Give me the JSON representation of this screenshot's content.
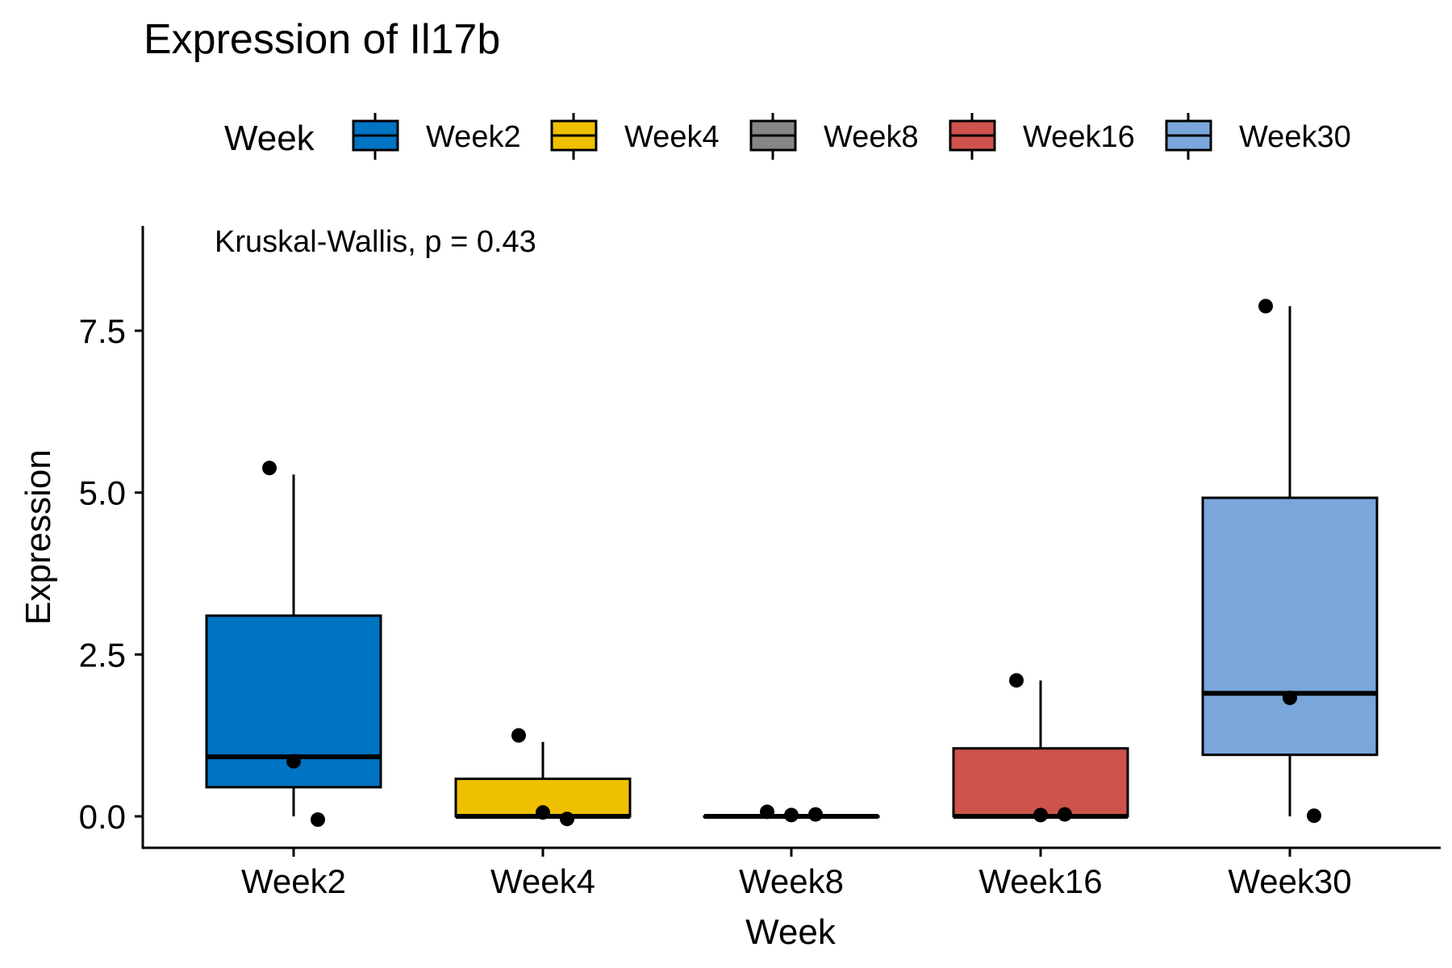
{
  "chart_data": {
    "type": "box",
    "title": "Expression of Il17b",
    "xlabel": "Week",
    "ylabel": "Expression",
    "annotation": "Kruskal-Wallis, p = 0.43",
    "legend": {
      "title": "Week",
      "position": "top",
      "items": [
        "Week2",
        "Week4",
        "Week8",
        "Week16",
        "Week30"
      ]
    },
    "categories": [
      "Week2",
      "Week4",
      "Week8",
      "Week16",
      "Week30"
    ],
    "colors": [
      "#0073C2",
      "#EFC000",
      "#868686",
      "#CD534C",
      "#7AA6DC"
    ],
    "ylim": [
      -0.95,
      9.0
    ],
    "yticks": [
      0.0,
      2.5,
      5.0,
      7.5
    ],
    "ytick_labels": [
      "0.0",
      "2.5",
      "5.0",
      "7.5"
    ],
    "grid": false,
    "boxes": [
      {
        "category": "Week2",
        "whisker_low": 0.0,
        "q1": 0.45,
        "median": 0.92,
        "q3": 3.1,
        "whisker_high": 5.28
      },
      {
        "category": "Week4",
        "whisker_low": 0.0,
        "q1": 0.0,
        "median": 0.0,
        "q3": 0.58,
        "whisker_high": 1.15
      },
      {
        "category": "Week8",
        "whisker_low": 0.0,
        "q1": 0.0,
        "median": 0.0,
        "q3": 0.0,
        "whisker_high": 0.0
      },
      {
        "category": "Week16",
        "whisker_low": 0.0,
        "q1": 0.0,
        "median": 0.0,
        "q3": 1.05,
        "whisker_high": 2.1
      },
      {
        "category": "Week30",
        "whisker_low": 0.0,
        "q1": 0.95,
        "median": 1.9,
        "q3": 4.92,
        "whisker_high": 7.88
      }
    ],
    "points": [
      {
        "category": "Week2",
        "y": 5.38
      },
      {
        "category": "Week2",
        "y": 0.85
      },
      {
        "category": "Week2",
        "y": -0.05
      },
      {
        "category": "Week4",
        "y": 1.25
      },
      {
        "category": "Week4",
        "y": 0.06
      },
      {
        "category": "Week4",
        "y": -0.04
      },
      {
        "category": "Week8",
        "y": 0.07
      },
      {
        "category": "Week8",
        "y": 0.02
      },
      {
        "category": "Week8",
        "y": 0.03
      },
      {
        "category": "Week16",
        "y": 2.1
      },
      {
        "category": "Week16",
        "y": 0.02
      },
      {
        "category": "Week16",
        "y": 0.03
      },
      {
        "category": "Week30",
        "y": 7.88
      },
      {
        "category": "Week30",
        "y": 1.83
      },
      {
        "category": "Week30",
        "y": 0.01
      }
    ]
  }
}
